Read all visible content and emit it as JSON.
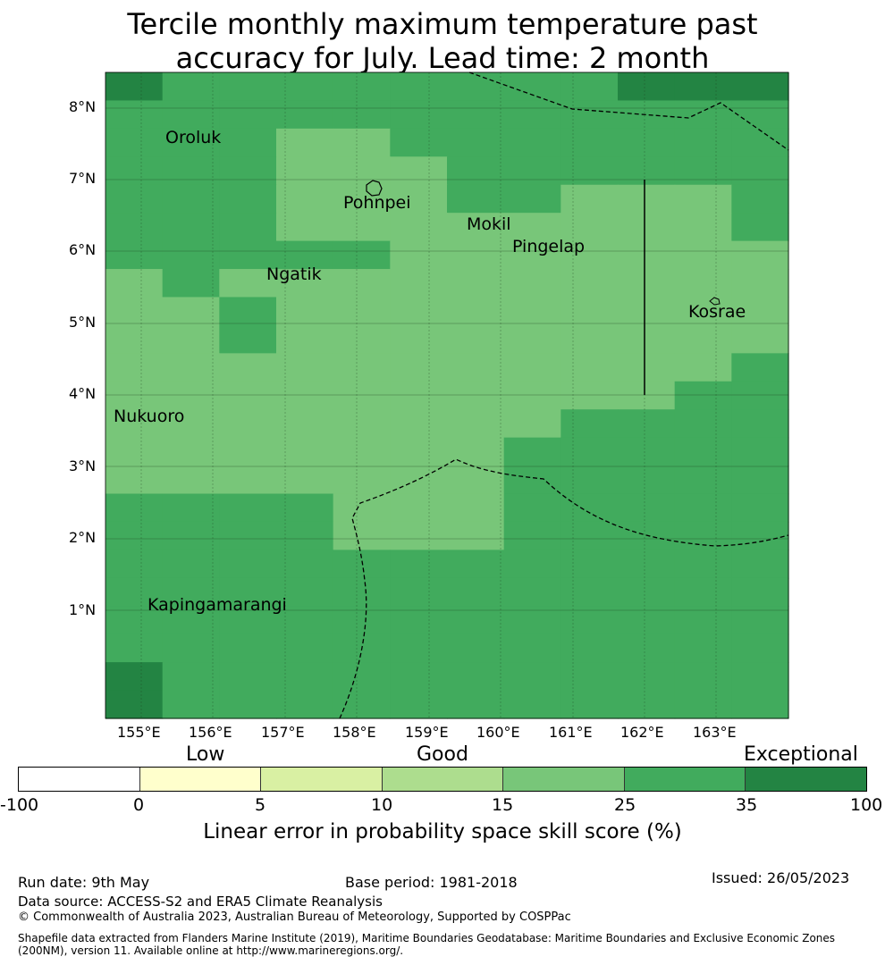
{
  "title": {
    "line1": "Tercile monthly maximum temperature past",
    "line2": "accuracy for July. Lead time: 2 month"
  },
  "map": {
    "lon_labels": [
      "155°E",
      "156°E",
      "157°E",
      "158°E",
      "159°E",
      "160°E",
      "161°E",
      "162°E",
      "163°E"
    ],
    "lat_labels": [
      "8°N",
      "7°N",
      "6°N",
      "5°N",
      "4°N",
      "3°N",
      "2°N",
      "1°N"
    ],
    "places": [
      {
        "name": "Oroluk"
      },
      {
        "name": "Pohnpei"
      },
      {
        "name": "Mokil"
      },
      {
        "name": "Pingelap"
      },
      {
        "name": "Ngatik"
      },
      {
        "name": "Kosrae"
      },
      {
        "name": "Nukuoro"
      },
      {
        "name": "Kapingamarangi"
      }
    ],
    "grid_colors": {
      "35_100": "#238443",
      "25_35": "#41ab5d",
      "15_25": "#78c679"
    },
    "grid_rows": [
      "DMMMMMMMMDDD",
      "MMMMMMMMMMMM",
      "MMMLLMMMMMMM",
      "MMMLLLMMMMMM",
      "MMMLLLMMLLLM",
      "MMMLLLLLLLLM",
      "MMMMMLLLLLLL",
      "LMLLLLLLLLLL",
      "LLMLLLLLLLLL",
      "LLMLLLLLLLLL",
      "LLLLLLLLLLLM",
      "LLLLLLLLLLMM",
      "LLLLLLLLMMMM",
      "LLLLLLLMMMMM",
      "LLLLLLLMMMMM",
      "MMMMLLLMMMMM",
      "MMMMLLLMMMMM",
      "MMMMMMMMMMMM",
      "MMMMMMMMMMMM",
      "MMMMMMMMMMMM",
      "MMMMMMMMMMMM",
      "DMMMMMMMMMMM",
      "DMMMMMMMMMMM"
    ]
  },
  "colorbar": {
    "category_labels": [
      "Low",
      "Good",
      "Exceptional"
    ],
    "ticks": [
      "-100",
      "0",
      "5",
      "10",
      "15",
      "25",
      "35",
      "100"
    ],
    "colors": [
      "#ffffff",
      "#ffffcc",
      "#d9f0a3",
      "#addd8e",
      "#78c679",
      "#41ab5d",
      "#238443"
    ],
    "label": "Linear error in probability space skill score (%)"
  },
  "footer": {
    "run_date": "Run date: 9th May",
    "base_period": "Base period: 1981-2018",
    "issued": "Issued: 26/05/2023",
    "data_source": "Data source: ACCESS-S2 and ERA5 Climate Reanalysis",
    "copyright": "© Commonwealth of Australia 2023, Australian Bureau of Meteorology, Supported by COSPPac",
    "shapefile_line1": "Shapefile data extracted from Flanders Marine Institute (2019), Maritime Boundaries Geodatabase: Maritime Boundaries and Exclusive Economic Zones",
    "shapefile_line2": "(200NM), version 11. Available online at http://www.marineregions.org/."
  }
}
